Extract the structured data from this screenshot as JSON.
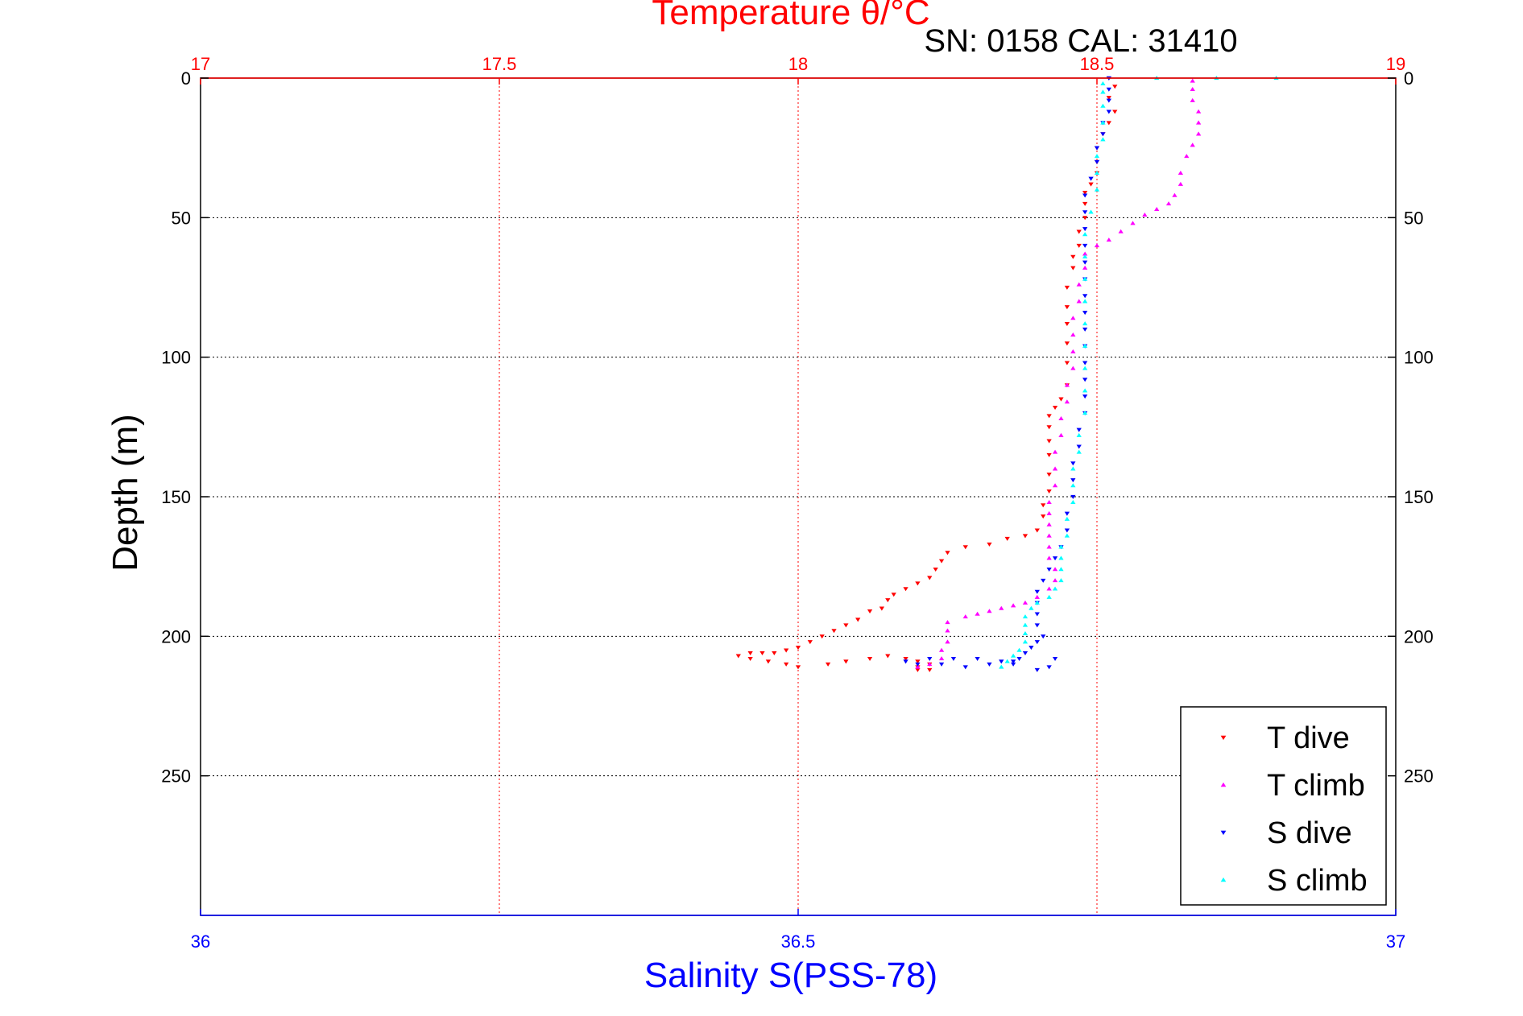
{
  "chart_data": {
    "type": "scatter",
    "title": "Temperature θ/°C",
    "subtitle": "SN: 0158  CAL: 31410",
    "xlabel": "Salinity S(PSS-78)",
    "ylabel": "Depth (m)",
    "x_top": {
      "range": [
        17,
        19
      ],
      "ticks": [
        "17",
        "17.5",
        "18",
        "18.5",
        "19"
      ],
      "tick_values": [
        17,
        17.5,
        18,
        18.5,
        19
      ],
      "color": "#ff0000"
    },
    "x_bottom": {
      "range": [
        36,
        37
      ],
      "ticks": [
        "36",
        "36.5",
        "37"
      ],
      "tick_values": [
        36,
        36.5,
        37
      ],
      "color": "#0000ff"
    },
    "y": {
      "range": [
        0,
        300
      ],
      "reversed": true,
      "ticks_left": [
        "0",
        "50",
        "100",
        "150",
        "200",
        "250"
      ],
      "ticks_right": [
        "0",
        "50",
        "100",
        "150",
        "200",
        "250"
      ],
      "tick_values": [
        0,
        50,
        100,
        150,
        200,
        250
      ]
    },
    "grid": true,
    "legend_position": "bottom-right",
    "series": [
      {
        "name": "T dive",
        "axis": "top",
        "color": "#ff0000",
        "marker": "triangle-down",
        "points": [
          [
            18.52,
            0
          ],
          [
            18.53,
            3
          ],
          [
            18.52,
            7
          ],
          [
            18.53,
            12
          ],
          [
            18.52,
            16
          ],
          [
            18.51,
            20
          ],
          [
            18.5,
            25
          ],
          [
            18.5,
            30
          ],
          [
            18.5,
            34
          ],
          [
            18.49,
            38
          ],
          [
            18.48,
            41
          ],
          [
            18.48,
            45
          ],
          [
            18.48,
            50
          ],
          [
            18.47,
            55
          ],
          [
            18.47,
            60
          ],
          [
            18.46,
            64
          ],
          [
            18.46,
            68
          ],
          [
            18.45,
            75
          ],
          [
            18.45,
            82
          ],
          [
            18.45,
            88
          ],
          [
            18.45,
            95
          ],
          [
            18.45,
            102
          ],
          [
            18.45,
            110
          ],
          [
            18.44,
            115
          ],
          [
            18.43,
            118
          ],
          [
            18.42,
            121
          ],
          [
            18.42,
            125
          ],
          [
            18.42,
            130
          ],
          [
            18.42,
            135
          ],
          [
            18.42,
            142
          ],
          [
            18.42,
            148
          ],
          [
            18.41,
            153
          ],
          [
            18.41,
            157
          ],
          [
            18.4,
            162
          ],
          [
            18.38,
            164
          ],
          [
            18.35,
            165
          ],
          [
            18.32,
            167
          ],
          [
            18.28,
            168
          ],
          [
            18.25,
            170
          ],
          [
            18.24,
            173
          ],
          [
            18.23,
            176
          ],
          [
            18.22,
            179
          ],
          [
            18.2,
            181
          ],
          [
            18.18,
            183
          ],
          [
            18.16,
            185
          ],
          [
            18.15,
            187
          ],
          [
            18.14,
            190
          ],
          [
            18.12,
            191
          ],
          [
            18.1,
            194
          ],
          [
            18.08,
            196
          ],
          [
            18.06,
            198
          ],
          [
            18.04,
            200
          ],
          [
            18.02,
            202
          ],
          [
            18.0,
            204
          ],
          [
            17.98,
            205
          ],
          [
            17.96,
            206
          ],
          [
            17.94,
            206
          ],
          [
            17.92,
            206
          ],
          [
            17.9,
            207
          ],
          [
            17.92,
            208
          ],
          [
            17.95,
            209
          ],
          [
            17.98,
            210
          ],
          [
            18.0,
            211
          ],
          [
            18.05,
            210
          ],
          [
            18.08,
            209
          ],
          [
            18.12,
            208
          ],
          [
            18.15,
            207
          ],
          [
            18.18,
            208
          ],
          [
            18.2,
            209
          ],
          [
            18.22,
            210
          ],
          [
            18.2,
            211
          ],
          [
            18.2,
            212
          ],
          [
            18.22,
            212
          ]
        ]
      },
      {
        "name": "T climb",
        "axis": "top",
        "color": "#ff00ff",
        "marker": "triangle-up",
        "points": [
          [
            18.2,
            211
          ],
          [
            18.22,
            210
          ],
          [
            18.24,
            208
          ],
          [
            18.24,
            205
          ],
          [
            18.25,
            202
          ],
          [
            18.25,
            198
          ],
          [
            18.25,
            195
          ],
          [
            18.28,
            193
          ],
          [
            18.3,
            192
          ],
          [
            18.32,
            191
          ],
          [
            18.34,
            190
          ],
          [
            18.36,
            189
          ],
          [
            18.38,
            188
          ],
          [
            18.4,
            186
          ],
          [
            18.42,
            183
          ],
          [
            18.43,
            180
          ],
          [
            18.43,
            176
          ],
          [
            18.42,
            172
          ],
          [
            18.42,
            168
          ],
          [
            18.42,
            164
          ],
          [
            18.42,
            160
          ],
          [
            18.42,
            156
          ],
          [
            18.42,
            152
          ],
          [
            18.43,
            146
          ],
          [
            18.43,
            140
          ],
          [
            18.43,
            134
          ],
          [
            18.44,
            128
          ],
          [
            18.44,
            122
          ],
          [
            18.45,
            116
          ],
          [
            18.45,
            110
          ],
          [
            18.46,
            104
          ],
          [
            18.46,
            98
          ],
          [
            18.46,
            92
          ],
          [
            18.46,
            86
          ],
          [
            18.47,
            80
          ],
          [
            18.47,
            74
          ],
          [
            18.48,
            68
          ],
          [
            18.48,
            63
          ],
          [
            18.5,
            60
          ],
          [
            18.52,
            58
          ],
          [
            18.54,
            55
          ],
          [
            18.56,
            52
          ],
          [
            18.58,
            49
          ],
          [
            18.6,
            47
          ],
          [
            18.62,
            45
          ],
          [
            18.63,
            42
          ],
          [
            18.64,
            38
          ],
          [
            18.64,
            34
          ],
          [
            18.65,
            28
          ],
          [
            18.66,
            24
          ],
          [
            18.67,
            20
          ],
          [
            18.67,
            16
          ],
          [
            18.67,
            12
          ],
          [
            18.66,
            8
          ],
          [
            18.66,
            4
          ],
          [
            18.66,
            1
          ]
        ]
      },
      {
        "name": "S dive",
        "axis": "bottom",
        "color": "#0000ff",
        "marker": "triangle-down",
        "points": [
          [
            36.76,
            0
          ],
          [
            36.76,
            4
          ],
          [
            36.76,
            8
          ],
          [
            36.76,
            12
          ],
          [
            36.755,
            16
          ],
          [
            36.755,
            20
          ],
          [
            36.75,
            25
          ],
          [
            36.75,
            30
          ],
          [
            36.745,
            36
          ],
          [
            36.74,
            42
          ],
          [
            36.74,
            48
          ],
          [
            36.74,
            54
          ],
          [
            36.74,
            60
          ],
          [
            36.74,
            66
          ],
          [
            36.74,
            72
          ],
          [
            36.74,
            78
          ],
          [
            36.74,
            84
          ],
          [
            36.74,
            90
          ],
          [
            36.74,
            96
          ],
          [
            36.74,
            102
          ],
          [
            36.74,
            108
          ],
          [
            36.74,
            114
          ],
          [
            36.74,
            120
          ],
          [
            36.735,
            126
          ],
          [
            36.735,
            132
          ],
          [
            36.73,
            138
          ],
          [
            36.73,
            144
          ],
          [
            36.73,
            150
          ],
          [
            36.725,
            156
          ],
          [
            36.725,
            162
          ],
          [
            36.72,
            168
          ],
          [
            36.715,
            172
          ],
          [
            36.71,
            176
          ],
          [
            36.705,
            180
          ],
          [
            36.7,
            184
          ],
          [
            36.7,
            188
          ],
          [
            36.7,
            192
          ],
          [
            36.7,
            196
          ],
          [
            36.705,
            200
          ],
          [
            36.7,
            202
          ],
          [
            36.695,
            204
          ],
          [
            36.69,
            206
          ],
          [
            36.685,
            208
          ],
          [
            36.68,
            209
          ],
          [
            36.67,
            209
          ],
          [
            36.65,
            208
          ],
          [
            36.63,
            208
          ],
          [
            36.61,
            208
          ],
          [
            36.59,
            209
          ],
          [
            36.6,
            210
          ],
          [
            36.62,
            210
          ],
          [
            36.64,
            211
          ],
          [
            36.66,
            210
          ],
          [
            36.68,
            210
          ],
          [
            36.7,
            212
          ],
          [
            36.71,
            211
          ],
          [
            36.715,
            208
          ]
        ]
      },
      {
        "name": "S climb",
        "axis": "bottom",
        "color": "#00ffff",
        "marker": "triangle-up",
        "points": [
          [
            36.67,
            211
          ],
          [
            36.675,
            209
          ],
          [
            36.68,
            207
          ],
          [
            36.685,
            205
          ],
          [
            36.69,
            202
          ],
          [
            36.69,
            199
          ],
          [
            36.69,
            196
          ],
          [
            36.69,
            193
          ],
          [
            36.695,
            190
          ],
          [
            36.7,
            188
          ],
          [
            36.71,
            186
          ],
          [
            36.715,
            183
          ],
          [
            36.72,
            180
          ],
          [
            36.72,
            176
          ],
          [
            36.72,
            172
          ],
          [
            36.72,
            168
          ],
          [
            36.725,
            164
          ],
          [
            36.725,
            158
          ],
          [
            36.73,
            152
          ],
          [
            36.73,
            146
          ],
          [
            36.73,
            140
          ],
          [
            36.735,
            134
          ],
          [
            36.735,
            128
          ],
          [
            36.74,
            120
          ],
          [
            36.74,
            112
          ],
          [
            36.74,
            104
          ],
          [
            36.74,
            96
          ],
          [
            36.74,
            88
          ],
          [
            36.74,
            80
          ],
          [
            36.74,
            72
          ],
          [
            36.74,
            64
          ],
          [
            36.74,
            56
          ],
          [
            36.745,
            48
          ],
          [
            36.75,
            40
          ],
          [
            36.75,
            34
          ],
          [
            36.75,
            28
          ],
          [
            36.755,
            22
          ],
          [
            36.755,
            16
          ],
          [
            36.755,
            10
          ],
          [
            36.755,
            5
          ],
          [
            36.755,
            2
          ],
          [
            36.8,
            0
          ],
          [
            36.85,
            0
          ],
          [
            36.9,
            0
          ]
        ]
      }
    ]
  }
}
